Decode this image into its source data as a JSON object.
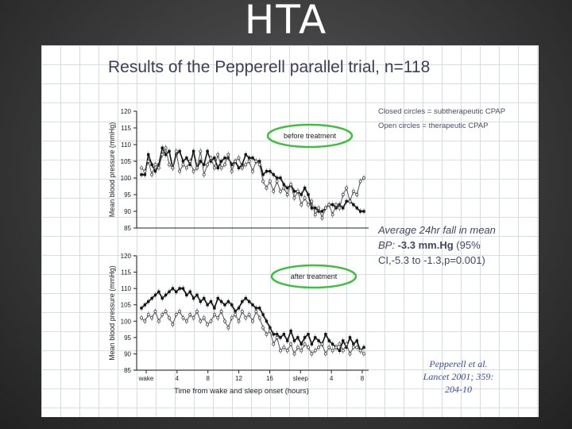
{
  "slide": {
    "title": "HTA"
  },
  "figure": {
    "title": "Results of the Pepperell parallel trial, n=118",
    "legend_closed": "Closed circles = subtherapeutic CPAP",
    "legend_open": "Open circles = therapeutic CPAP",
    "stat_line1_italic": "Average 24hr fall in mean",
    "stat_line2_italic": "BP:",
    "stat_line2_bold": "-3.3 mm.Hg",
    "stat_line2_rest": "(95%",
    "stat_line3": "CI,-5.3 to -1.3,p=0.001)",
    "citation": [
      "Pepperell et al.",
      "Lancet 2001; 359:",
      "204-10"
    ]
  },
  "chart_data": [
    {
      "type": "line",
      "annotation": "before treatment",
      "ylabel": "Mean blood pressure (mmHg)",
      "ylim": [
        85,
        120
      ],
      "yticks": [
        85,
        90,
        95,
        100,
        105,
        110,
        115,
        120
      ],
      "series": [
        {
          "marker": "closed",
          "values": [
            101,
            101,
            107,
            104,
            102,
            104,
            109,
            107,
            108,
            103,
            107,
            108,
            105,
            106,
            104,
            108,
            103,
            105,
            104,
            108,
            105,
            106,
            103,
            105,
            106,
            106,
            104,
            105,
            103,
            104,
            107,
            106,
            106,
            105,
            105,
            101,
            102,
            102,
            101,
            100,
            100,
            98,
            97,
            98,
            96,
            96,
            95,
            97,
            95,
            91,
            91,
            90,
            90,
            91,
            92,
            92,
            91,
            92,
            91,
            93,
            93,
            92,
            91,
            90,
            90
          ]
        },
        {
          "marker": "open",
          "values": [
            103,
            102,
            105,
            101,
            104,
            103,
            107,
            109,
            104,
            103,
            108,
            102,
            104,
            103,
            105,
            102,
            103,
            108,
            101,
            104,
            106,
            103,
            107,
            103,
            104,
            107,
            102,
            105,
            106,
            103,
            104,
            105,
            102,
            105,
            104,
            99,
            97,
            99,
            96,
            99,
            96,
            97,
            95,
            98,
            94,
            96,
            92,
            94,
            92,
            93,
            89,
            91,
            88,
            91,
            92,
            89,
            92,
            91,
            95,
            97,
            93,
            96,
            95,
            99,
            100
          ]
        }
      ]
    },
    {
      "type": "line",
      "annotation": "after treatment",
      "ylabel": "Mean blood pressure (mmHg)",
      "xlabel": "Time from wake and sleep onset (hours)",
      "ylim": [
        85,
        120
      ],
      "yticks": [
        85,
        90,
        95,
        100,
        105,
        110,
        115,
        120
      ],
      "xticks": [
        "wake",
        "4",
        "8",
        "12",
        "16",
        "sleep",
        "4",
        "8"
      ],
      "series": [
        {
          "marker": "closed",
          "values": [
            104,
            105,
            106,
            107,
            108,
            109,
            107,
            108,
            109,
            110,
            109,
            110,
            110,
            108,
            109,
            107,
            108,
            106,
            107,
            105,
            106,
            104,
            107,
            106,
            105,
            106,
            105,
            103,
            104,
            106,
            107,
            106,
            105,
            104,
            104,
            102,
            100,
            98,
            96,
            96,
            95,
            96,
            94,
            97,
            94,
            95,
            93,
            95,
            96,
            93,
            95,
            94,
            93,
            96,
            94,
            93,
            92,
            91,
            94,
            92,
            95,
            93,
            94,
            91,
            92
          ]
        },
        {
          "marker": "open",
          "values": [
            101,
            100,
            102,
            101,
            103,
            100,
            102,
            103,
            101,
            99,
            102,
            103,
            101,
            100,
            102,
            101,
            103,
            100,
            101,
            99,
            100,
            102,
            101,
            103,
            100,
            98,
            101,
            102,
            100,
            103,
            101,
            102,
            100,
            103,
            101,
            98,
            96,
            97,
            93,
            95,
            91,
            92,
            91,
            93,
            90,
            92,
            91,
            93,
            92,
            90,
            91,
            92,
            93,
            90,
            92,
            91,
            92,
            93,
            91,
            93,
            90,
            92,
            92,
            91,
            90
          ]
        }
      ]
    }
  ]
}
